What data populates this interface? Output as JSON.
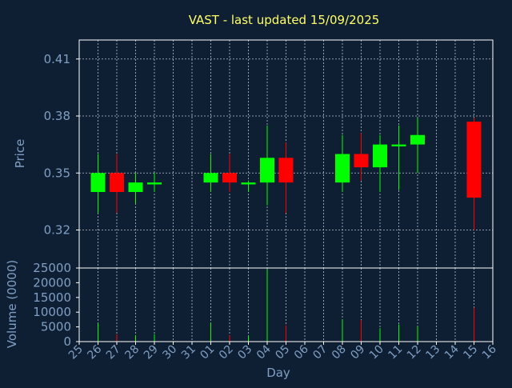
{
  "chart_data": {
    "type": "candlestick",
    "title": "VAST - last updated 15/09/2025",
    "xlabel": "Day",
    "price_axis": {
      "label": "Price",
      "ylim": [
        0.3,
        0.42
      ],
      "ticks": [
        "0.32",
        "0.35",
        "0.38",
        "0.41"
      ]
    },
    "volume_axis": {
      "label": "Volume (0000)",
      "ylim": [
        0,
        25000
      ],
      "ticks": [
        "0",
        "5000",
        "10000",
        "15000",
        "20000",
        "25000"
      ]
    },
    "x_ticks": [
      "25",
      "26",
      "27",
      "28",
      "29",
      "30",
      "31",
      "01",
      "02",
      "03",
      "04",
      "05",
      "06",
      "07",
      "08",
      "09",
      "10",
      "11",
      "12",
      "13",
      "14",
      "15",
      "16"
    ],
    "grid": true,
    "candles": [
      {
        "day": "26",
        "open": 0.34,
        "high": 0.36,
        "low": 0.329,
        "close": 0.35,
        "volume": 6200
      },
      {
        "day": "27",
        "open": 0.35,
        "high": 0.36,
        "low": 0.329,
        "close": 0.34,
        "volume": 2500
      },
      {
        "day": "28",
        "open": 0.34,
        "high": 0.35,
        "low": 0.334,
        "close": 0.345,
        "volume": 2200
      },
      {
        "day": "29",
        "open": 0.344,
        "high": 0.35,
        "low": 0.34,
        "close": 0.345,
        "volume": 2500
      },
      {
        "day": "01",
        "open": 0.345,
        "high": 0.36,
        "low": 0.34,
        "close": 0.35,
        "volume": 6500
      },
      {
        "day": "02",
        "open": 0.35,
        "high": 0.36,
        "low": 0.34,
        "close": 0.345,
        "volume": 2100
      },
      {
        "day": "03",
        "open": 0.344,
        "high": 0.346,
        "low": 0.34,
        "close": 0.345,
        "volume": 2100
      },
      {
        "day": "04",
        "open": 0.345,
        "high": 0.375,
        "low": 0.333,
        "close": 0.358,
        "volume": 24500
      },
      {
        "day": "05",
        "open": 0.358,
        "high": 0.366,
        "low": 0.329,
        "close": 0.345,
        "volume": 5500
      },
      {
        "day": "08",
        "open": 0.345,
        "high": 0.37,
        "low": 0.34,
        "close": 0.36,
        "volume": 7600
      },
      {
        "day": "09",
        "open": 0.36,
        "high": 0.371,
        "low": 0.346,
        "close": 0.353,
        "volume": 7300
      },
      {
        "day": "10",
        "open": 0.353,
        "high": 0.37,
        "low": 0.34,
        "close": 0.365,
        "volume": 4600
      },
      {
        "day": "11",
        "open": 0.364,
        "high": 0.375,
        "low": 0.341,
        "close": 0.365,
        "volume": 5800
      },
      {
        "day": "12",
        "open": 0.365,
        "high": 0.379,
        "low": 0.35,
        "close": 0.37,
        "volume": 5200
      },
      {
        "day": "15",
        "open": 0.377,
        "high": 0.379,
        "low": 0.32,
        "close": 0.337,
        "volume": 11500
      }
    ],
    "colors": {
      "background": "#0f1f33",
      "axes": "#ffffff",
      "grid": "#b8c0cc",
      "text": "#7f9fc4",
      "title": "#ffff66",
      "up": "#00ff00",
      "down": "#ff0000"
    }
  }
}
